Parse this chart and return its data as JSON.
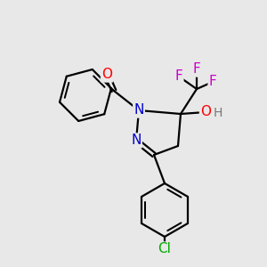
{
  "background_color": "#e8e8e8",
  "bond_color": "#000000",
  "atom_colors": {
    "C": "#000000",
    "N": "#0000cc",
    "O": "#ff0000",
    "F": "#cc00cc",
    "Cl": "#00aa00",
    "H": "#777777"
  },
  "figsize": [
    3.0,
    3.0
  ],
  "dpi": 100
}
